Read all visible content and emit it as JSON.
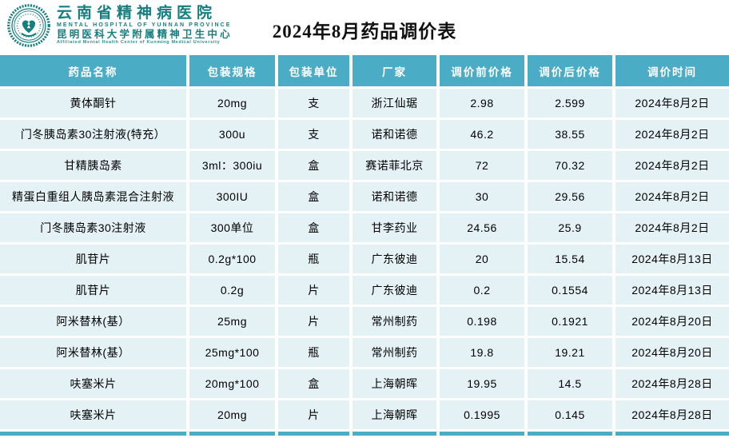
{
  "page": {
    "title": "2024年8月药品调价表"
  },
  "logo": {
    "hospital_name_cn": "云南省精神病医院",
    "hospital_name_en": "MENTAL HOSPITAL OF YUNNAN PROVINCE",
    "affiliation_cn": "昆明医科大学附属精神卫生中心",
    "affiliation_en": "Affiliated Mental Health Center of Kunming Medical University"
  },
  "colors": {
    "header_teal": "#4bacc6",
    "row_background": "#e4f2f6",
    "logo_teal": "#157f80",
    "title_color": "#111111"
  },
  "table": {
    "columns": [
      "药品名称",
      "包装规格",
      "包装单位",
      "厂家",
      "调价前价格",
      "调价后价格",
      "调价时间"
    ],
    "rows": [
      [
        "黄体酮针",
        "20mg",
        "支",
        "浙江仙琚",
        "2.98",
        "2.599",
        "2024年8月2日"
      ],
      [
        "门冬胰岛素30注射液(特充）",
        "300u",
        "支",
        "诺和诺德",
        "46.2",
        "38.55",
        "2024年8月2日"
      ],
      [
        "甘精胰岛素",
        "3ml：300iu",
        "盒",
        "赛诺菲北京",
        "72",
        "70.32",
        "2024年8月2日"
      ],
      [
        "精蛋白重组人胰岛素混合注射液",
        "300IU",
        "盒",
        "诺和诺德",
        "30",
        "29.56",
        "2024年8月2日"
      ],
      [
        "门冬胰岛素30注射液",
        "300单位",
        "盒",
        "甘李药业",
        "24.56",
        "25.9",
        "2024年8月2日"
      ],
      [
        "肌苷片",
        "0.2g*100",
        "瓶",
        "广东彼迪",
        "20",
        "15.54",
        "2024年8月13日"
      ],
      [
        "肌苷片",
        "0.2g",
        "片",
        "广东彼迪",
        "0.2",
        "0.1554",
        "2024年8月13日"
      ],
      [
        "阿米替林(基）",
        "25mg",
        "片",
        "常州制药",
        "0.198",
        "0.1921",
        "2024年8月20日"
      ],
      [
        "阿米替林(基）",
        "25mg*100",
        "瓶",
        "常州制药",
        "19.8",
        "19.21",
        "2024年8月20日"
      ],
      [
        "呋塞米片",
        "20mg*100",
        "盒",
        "上海朝晖",
        "19.95",
        "14.5",
        "2024年8月28日"
      ],
      [
        "呋塞米片",
        "20mg",
        "片",
        "上海朝晖",
        "0.1995",
        "0.145",
        "2024年8月28日"
      ]
    ]
  }
}
